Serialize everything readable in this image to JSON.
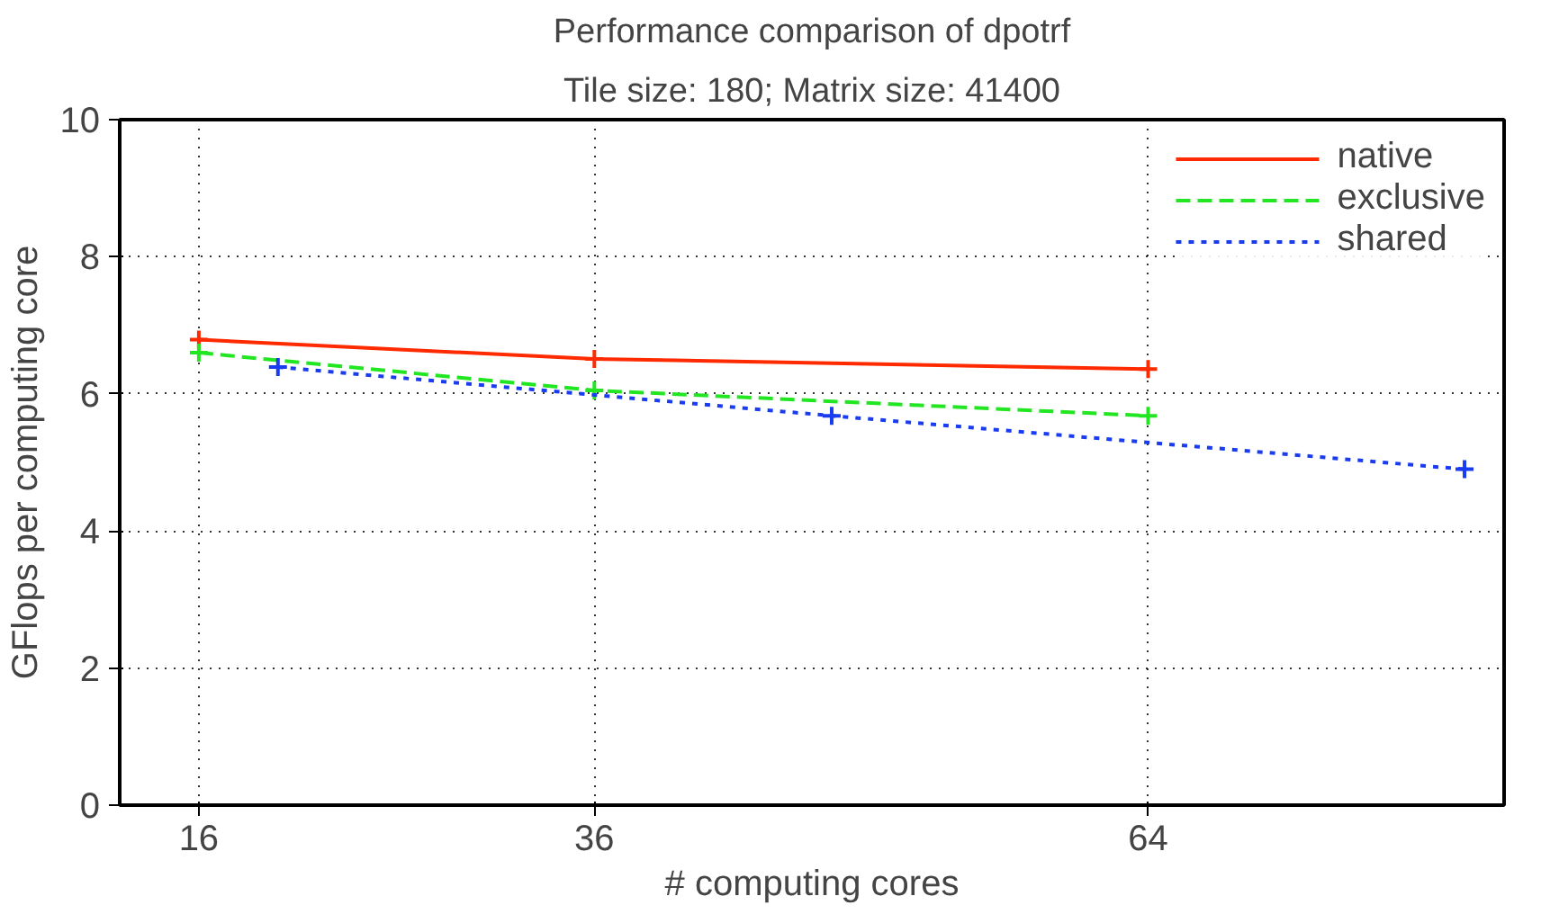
{
  "chart_data": {
    "type": "line",
    "title": "Performance comparison of dpotrf",
    "subtitle": "Tile size: 180; Matrix size: 41400",
    "xlabel": "# computing cores",
    "ylabel": "GFlops per computing core",
    "xlim": [
      12,
      82
    ],
    "xticks": [
      16,
      36,
      64
    ],
    "ylim": [
      0,
      10
    ],
    "yticks": [
      0,
      2,
      4,
      6,
      8,
      10
    ],
    "grid": true,
    "legend": "top right",
    "series": [
      {
        "name": "native",
        "color": "#ff2a00",
        "x": [
          16,
          36,
          64
        ],
        "values": [
          6.79,
          6.51,
          6.36
        ],
        "marker": "cross",
        "line_style": "solid"
      },
      {
        "name": "exclusive",
        "color": "#22e622",
        "x": [
          16,
          36,
          64
        ],
        "values": [
          6.6,
          6.05,
          5.68
        ],
        "marker": "cross",
        "line_style": "dashed"
      },
      {
        "name": "shared",
        "color": "#1a3cf0",
        "x": [
          20,
          48,
          80
        ],
        "values": [
          6.39,
          5.68,
          4.9
        ],
        "marker": "cross",
        "line_style": "dotted"
      }
    ]
  }
}
